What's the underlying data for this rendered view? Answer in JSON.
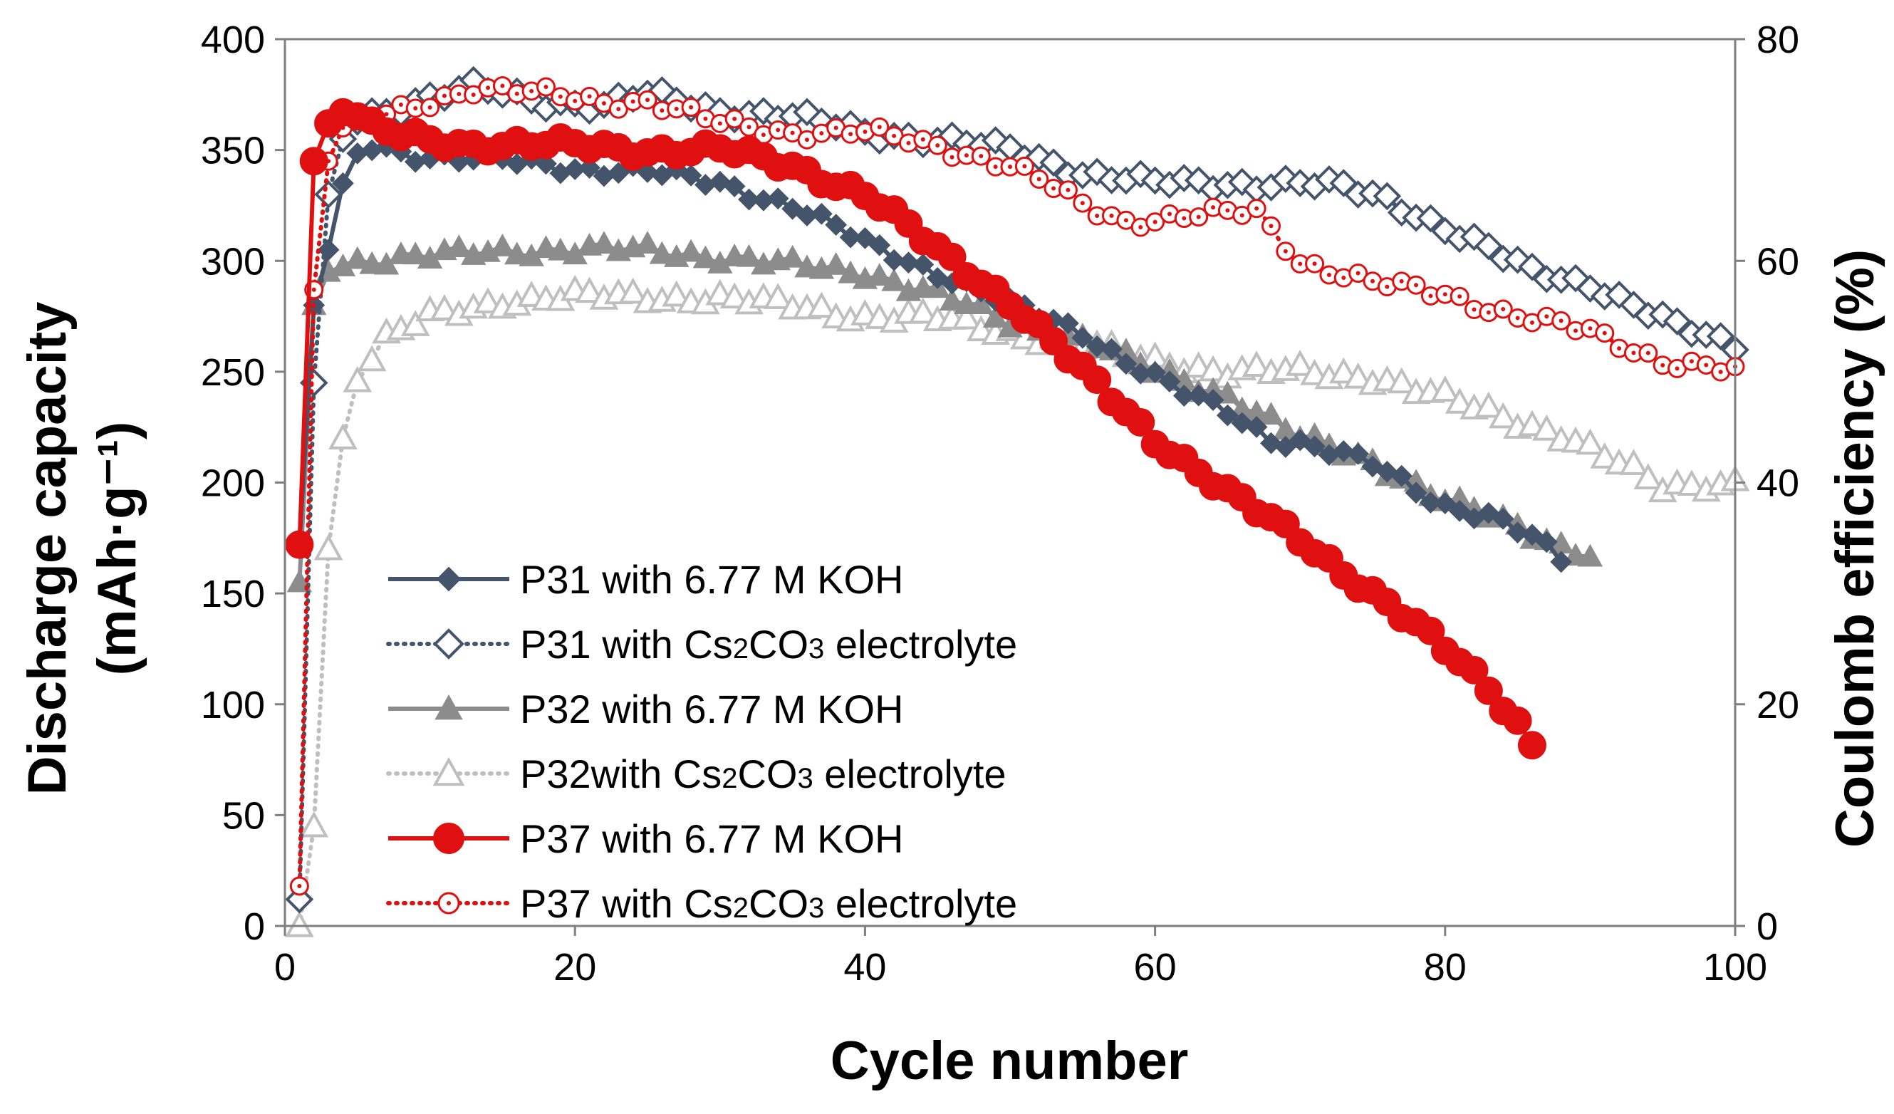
{
  "chart_data": {
    "type": "line",
    "title": "",
    "xlabel": "Cycle number",
    "ylabel_line1": "Discharge capacity",
    "ylabel_line2": "(mAh·g⁻¹)",
    "y2label": "Coulomb efficiency (%)",
    "xlim": [
      0,
      100
    ],
    "ylim": [
      0,
      400
    ],
    "y2lim": [
      0,
      80
    ],
    "x_ticks": [
      0,
      20,
      40,
      60,
      80,
      100
    ],
    "y_ticks": [
      0,
      50,
      100,
      150,
      200,
      250,
      300,
      350,
      400
    ],
    "y2_ticks": [
      0,
      20,
      40,
      60,
      80
    ],
    "grid": false,
    "legend_position": "lower-left",
    "colors": {
      "p31": "#44546A",
      "p32": "#8C8C8C",
      "p32_open": "#BFBFBF",
      "p37": "#E01010",
      "axis": "#7F7F7F"
    },
    "series": [
      {
        "id": "p31_koh",
        "name": "P31 with 6.77 M KOH",
        "legend_parts": [
          "P31 with 6.77 M KOH"
        ],
        "style": "solid",
        "marker": "diamond-filled",
        "color_key": "p31",
        "x_end": 88,
        "anchors": [
          [
            1,
            173
          ],
          [
            2,
            280
          ],
          [
            3,
            305
          ],
          [
            4,
            335
          ],
          [
            5,
            348
          ],
          [
            6,
            352
          ],
          [
            10,
            347
          ],
          [
            15,
            345
          ],
          [
            20,
            342
          ],
          [
            25,
            340
          ],
          [
            30,
            335
          ],
          [
            35,
            325
          ],
          [
            40,
            308
          ],
          [
            45,
            295
          ],
          [
            50,
            280
          ],
          [
            55,
            268
          ],
          [
            58,
            255
          ],
          [
            62,
            240
          ],
          [
            65,
            232
          ],
          [
            68,
            220
          ],
          [
            70,
            218
          ],
          [
            75,
            208
          ],
          [
            80,
            190
          ],
          [
            83,
            185
          ],
          [
            86,
            175
          ],
          [
            88,
            165
          ]
        ]
      },
      {
        "id": "p31_cs",
        "name": "P31 with Cs2CO3 electrolyte",
        "legend_parts": [
          "P31 with Cs",
          "2",
          "CO",
          "3",
          "  electrolyte"
        ],
        "style": "dotted",
        "marker": "diamond-open",
        "color_key": "p31",
        "x_end": 100,
        "anchors": [
          [
            1,
            12
          ],
          [
            2,
            245
          ],
          [
            3,
            330
          ],
          [
            4,
            355
          ],
          [
            5,
            365
          ],
          [
            8,
            370
          ],
          [
            13,
            378
          ],
          [
            18,
            372
          ],
          [
            22,
            370
          ],
          [
            25,
            375
          ],
          [
            30,
            368
          ],
          [
            35,
            365
          ],
          [
            40,
            358
          ],
          [
            45,
            355
          ],
          [
            50,
            350
          ],
          [
            55,
            340
          ],
          [
            60,
            335
          ],
          [
            65,
            335
          ],
          [
            70,
            335
          ],
          [
            73,
            333
          ],
          [
            76,
            328
          ],
          [
            80,
            315
          ],
          [
            83,
            305
          ],
          [
            86,
            295
          ],
          [
            90,
            290
          ],
          [
            93,
            280
          ],
          [
            96,
            270
          ],
          [
            100,
            262
          ]
        ]
      },
      {
        "id": "p32_koh",
        "name": "P32 with 6.77 M KOH",
        "legend_parts": [
          "P32 with 6.77 M KOH"
        ],
        "style": "solid",
        "marker": "triangle-filled",
        "color_key": "p32",
        "x_end": 90,
        "anchors": [
          [
            1,
            155
          ],
          [
            2,
            280
          ],
          [
            3,
            295
          ],
          [
            5,
            300
          ],
          [
            10,
            302
          ],
          [
            15,
            305
          ],
          [
            20,
            305
          ],
          [
            25,
            305
          ],
          [
            30,
            302
          ],
          [
            35,
            298
          ],
          [
            40,
            295
          ],
          [
            45,
            285
          ],
          [
            50,
            272
          ],
          [
            55,
            265
          ],
          [
            60,
            250
          ],
          [
            65,
            240
          ],
          [
            70,
            220
          ],
          [
            75,
            210
          ],
          [
            80,
            192
          ],
          [
            85,
            180
          ],
          [
            88,
            172
          ],
          [
            90,
            168
          ]
        ]
      },
      {
        "id": "p32_cs",
        "name": "P32with  Cs2CO3 electrolyte",
        "legend_parts": [
          "P32with  Cs",
          "2",
          "CO",
          "3",
          " electrolyte"
        ],
        "style": "dotted",
        "marker": "triangle-open",
        "color_key": "p32_open",
        "x_end": 100,
        "anchors": [
          [
            1,
            0
          ],
          [
            2,
            45
          ],
          [
            3,
            170
          ],
          [
            4,
            220
          ],
          [
            5,
            248
          ],
          [
            7,
            265
          ],
          [
            10,
            275
          ],
          [
            15,
            282
          ],
          [
            20,
            284
          ],
          [
            25,
            284
          ],
          [
            30,
            283
          ],
          [
            35,
            280
          ],
          [
            40,
            275
          ],
          [
            45,
            274
          ],
          [
            50,
            268
          ],
          [
            55,
            262
          ],
          [
            60,
            255
          ],
          [
            65,
            250
          ],
          [
            70,
            250
          ],
          [
            75,
            248
          ],
          [
            80,
            238
          ],
          [
            85,
            228
          ],
          [
            88,
            222
          ],
          [
            90,
            215
          ],
          [
            93,
            205
          ],
          [
            95,
            198
          ],
          [
            98,
            200
          ],
          [
            100,
            200
          ]
        ]
      },
      {
        "id": "p37_koh",
        "name": "P37 with 6.77 M KOH",
        "legend_parts": [
          "P37 with 6.77 M KOH"
        ],
        "style": "solid",
        "marker": "circle-filled",
        "color_key": "p37",
        "x_end": 86,
        "anchors": [
          [
            1,
            172
          ],
          [
            2,
            345
          ],
          [
            3,
            362
          ],
          [
            4,
            367
          ],
          [
            5,
            365
          ],
          [
            6,
            360
          ],
          [
            8,
            356
          ],
          [
            12,
            353
          ],
          [
            20,
            352
          ],
          [
            25,
            350
          ],
          [
            30,
            350
          ],
          [
            35,
            343
          ],
          [
            40,
            330
          ],
          [
            45,
            305
          ],
          [
            50,
            282
          ],
          [
            55,
            250
          ],
          [
            60,
            220
          ],
          [
            65,
            195
          ],
          [
            70,
            175
          ],
          [
            75,
            150
          ],
          [
            80,
            125
          ],
          [
            83,
            108
          ],
          [
            85,
            92
          ],
          [
            86,
            82
          ]
        ]
      },
      {
        "id": "p37_cs",
        "name": "P37 with Cs2CO3 electrolyte",
        "legend_parts": [
          "P37 with Cs",
          "2",
          "CO",
          "3",
          "  electrolyte"
        ],
        "style": "dotted",
        "marker": "circle-open",
        "color_key": "p37",
        "x_end": 100,
        "anchors": [
          [
            1,
            18
          ],
          [
            2,
            287
          ],
          [
            3,
            345
          ],
          [
            4,
            360
          ],
          [
            5,
            362
          ],
          [
            8,
            368
          ],
          [
            13,
            378
          ],
          [
            18,
            375
          ],
          [
            22,
            372
          ],
          [
            25,
            372
          ],
          [
            30,
            362
          ],
          [
            35,
            358
          ],
          [
            40,
            358
          ],
          [
            45,
            352
          ],
          [
            50,
            343
          ],
          [
            53,
            333
          ],
          [
            55,
            325
          ],
          [
            58,
            318
          ],
          [
            62,
            320
          ],
          [
            67,
            322
          ],
          [
            70,
            300
          ],
          [
            75,
            290
          ],
          [
            80,
            285
          ],
          [
            85,
            275
          ],
          [
            90,
            268
          ],
          [
            95,
            255
          ],
          [
            100,
            250
          ]
        ]
      }
    ]
  }
}
